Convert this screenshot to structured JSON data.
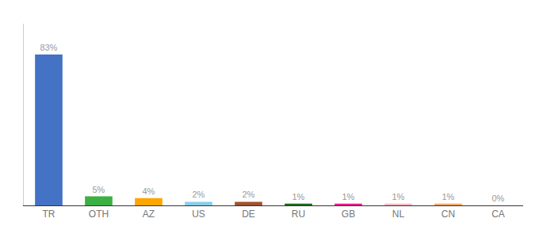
{
  "chart_data": {
    "type": "bar",
    "categories": [
      "TR",
      "OTH",
      "AZ",
      "US",
      "DE",
      "RU",
      "GB",
      "NL",
      "CN",
      "CA"
    ],
    "values": [
      83,
      5,
      4,
      2,
      2,
      1,
      1,
      1,
      1,
      0
    ],
    "value_labels": [
      "83%",
      "5%",
      "4%",
      "2%",
      "2%",
      "1%",
      "1%",
      "1%",
      "1%",
      "0%"
    ],
    "colors": [
      "#4472C4",
      "#3CB043",
      "#FFA500",
      "#87CEEB",
      "#A0522D",
      "#1A6B1A",
      "#E91E8C",
      "#FFB6C1",
      "#F4A460",
      "#C8A882"
    ],
    "ylim": [
      0,
      100
    ],
    "data_labels": true,
    "tick_labels": "x",
    "grid": false
  }
}
